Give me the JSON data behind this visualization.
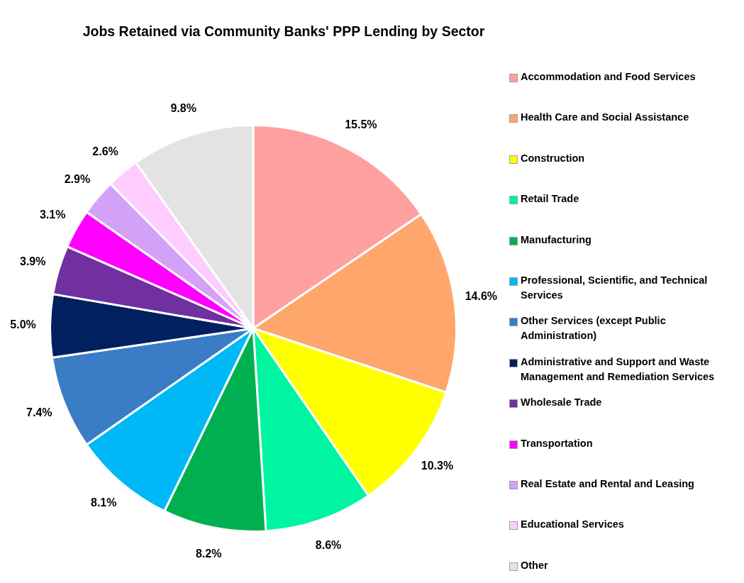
{
  "chart_data": {
    "type": "pie",
    "title": "Jobs Retained via Community Banks' PPP Lending by Sector",
    "categories": [
      "Accommodation and Food Services",
      "Health Care and Social Assistance",
      "Construction",
      "Retail Trade",
      "Manufacturing",
      "Professional, Scientific, and Technical Services",
      "Other Services (except Public Administration)",
      "Administrative and Support and Waste Management and Remediation Services",
      "Wholesale Trade",
      "Transportation",
      "Real Estate and Rental and Leasing",
      "Educational Services",
      "Other"
    ],
    "values": [
      15.5,
      14.6,
      10.3,
      8.6,
      8.2,
      8.1,
      7.4,
      5.0,
      3.9,
      3.1,
      2.9,
      2.6,
      9.8
    ],
    "colors": [
      "#ffa0a0",
      "#ffa66c",
      "#ffff00",
      "#00f5a0",
      "#00b050",
      "#00b8f5",
      "#3a7dc6",
      "#002060",
      "#7030a0",
      "#ff00ff",
      "#d4a0f8",
      "#ffccff",
      "#e3e3e3"
    ],
    "value_labels": [
      "15.5%",
      "14.6%",
      "10.3%",
      "8.6%",
      "8.2%",
      "8.1%",
      "7.4%",
      "5.0%",
      "3.9%",
      "3.1%",
      "2.9%",
      "2.6%",
      "9.8%"
    ],
    "legend": "right"
  }
}
